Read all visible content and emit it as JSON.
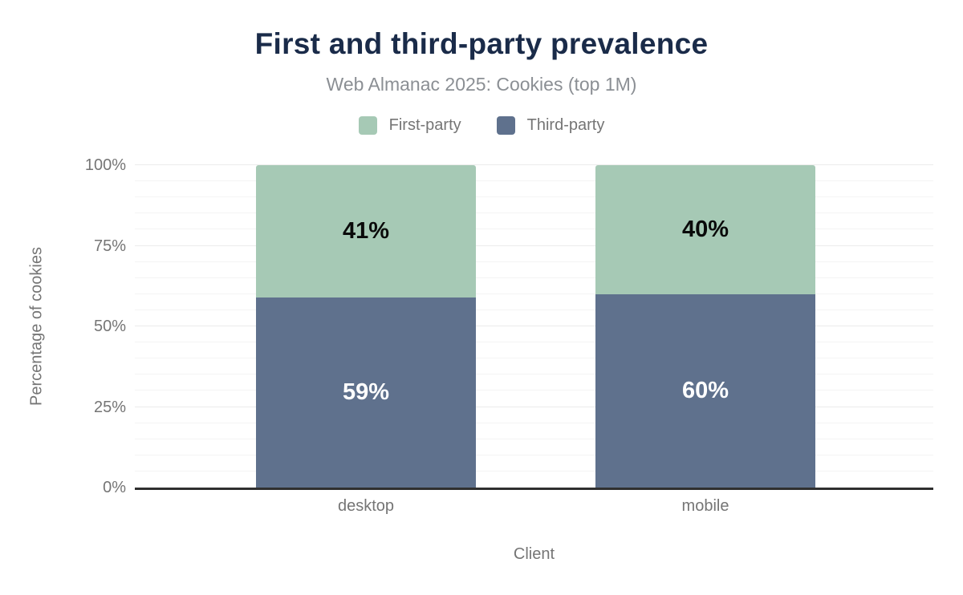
{
  "title": "First and third-party prevalence",
  "subtitle": "Web Almanac 2025: Cookies (top 1M)",
  "colors": {
    "title": "#1a2b49",
    "subtitle": "#8b8f94",
    "axis_text": "#757575",
    "axis_line": "#2f2f2f",
    "grid_minor": "#f4f4f4",
    "grid_major": "#ebebeb",
    "first_party": "#a6c9b5",
    "third_party": "#5f718d"
  },
  "chart_data": {
    "type": "bar",
    "stacked": true,
    "title": "First and third-party prevalence",
    "subtitle": "Web Almanac 2025: Cookies (top 1M)",
    "categories": [
      "desktop",
      "mobile"
    ],
    "series": [
      {
        "name": "First-party",
        "color": "#a6c9b5",
        "label_color": "#0a0a0a",
        "values": [
          41,
          40
        ]
      },
      {
        "name": "Third-party",
        "color": "#5f718d",
        "label_color": "#ffffff",
        "values": [
          59,
          60
        ]
      }
    ],
    "stack_bottom_to_top": [
      "Third-party",
      "First-party"
    ],
    "xlabel": "Client",
    "ylabel": "Percentage of cookies",
    "ylim": [
      0,
      100
    ],
    "yticks": [
      0,
      25,
      50,
      75,
      100
    ],
    "ytick_format": "{v}%",
    "data_label_format": "{v}%",
    "grid": "horizontal minor lines every 5%, major every 25%",
    "legend_position": "top-center"
  }
}
